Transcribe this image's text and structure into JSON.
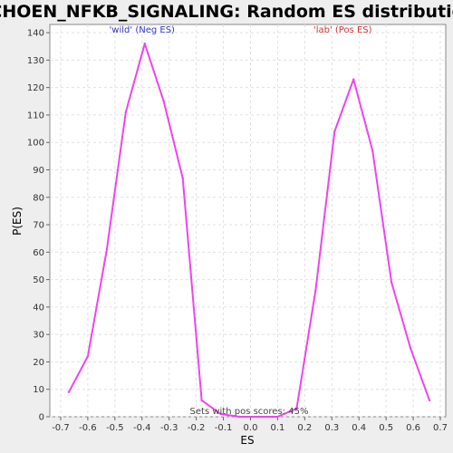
{
  "chart_data": {
    "type": "line",
    "title": "SCHOEN_NFKB_SIGNALING: Random ES distribution",
    "xlabel": "ES",
    "ylabel": "P(ES)",
    "xlim": [
      -0.74,
      0.72
    ],
    "ylim": [
      0,
      143
    ],
    "xticks": [
      -0.7,
      -0.6,
      -0.5,
      -0.4,
      -0.3,
      -0.2,
      -0.1,
      0.0,
      0.1,
      0.2,
      0.3,
      0.4,
      0.5,
      0.6,
      0.7
    ],
    "xtick_labels": [
      "-0.7",
      "-0.6",
      "-0.5",
      "-0.4",
      "-0.3",
      "-0.2",
      "-0.1",
      "0.0",
      "0.1",
      "0.2",
      "0.3",
      "0.4",
      "0.5",
      "0.6",
      "0.7"
    ],
    "yticks": [
      0,
      10,
      20,
      30,
      40,
      50,
      60,
      70,
      80,
      90,
      100,
      110,
      120,
      130,
      140
    ],
    "ytick_labels": [
      "0",
      "10",
      "20",
      "30",
      "40",
      "50",
      "60",
      "70",
      "80",
      "90",
      "100",
      "110",
      "120",
      "130",
      "140"
    ],
    "grid": true,
    "series": [
      {
        "color": "#ee44ee",
        "x": [
          -0.67,
          -0.6,
          -0.53,
          -0.46,
          -0.39,
          -0.32,
          -0.25,
          -0.18,
          -0.11,
          -0.04,
          0.03,
          0.1,
          0.17,
          0.24,
          0.31,
          0.38,
          0.45,
          0.52,
          0.59,
          0.66
        ],
        "y": [
          9,
          22,
          61,
          111,
          136,
          115,
          87,
          6,
          1,
          0,
          0,
          0,
          3,
          46,
          104,
          123,
          97,
          49,
          25,
          6
        ]
      }
    ],
    "annotations": [
      {
        "text": "'wild' (Neg ES)",
        "color": "#3333cc",
        "x": -0.4,
        "y": 140
      },
      {
        "text": "'lab' (Pos ES)",
        "color": "#cc3333",
        "x": 0.34,
        "y": 140
      }
    ],
    "footer": "Sets with pos scores: 45%"
  }
}
